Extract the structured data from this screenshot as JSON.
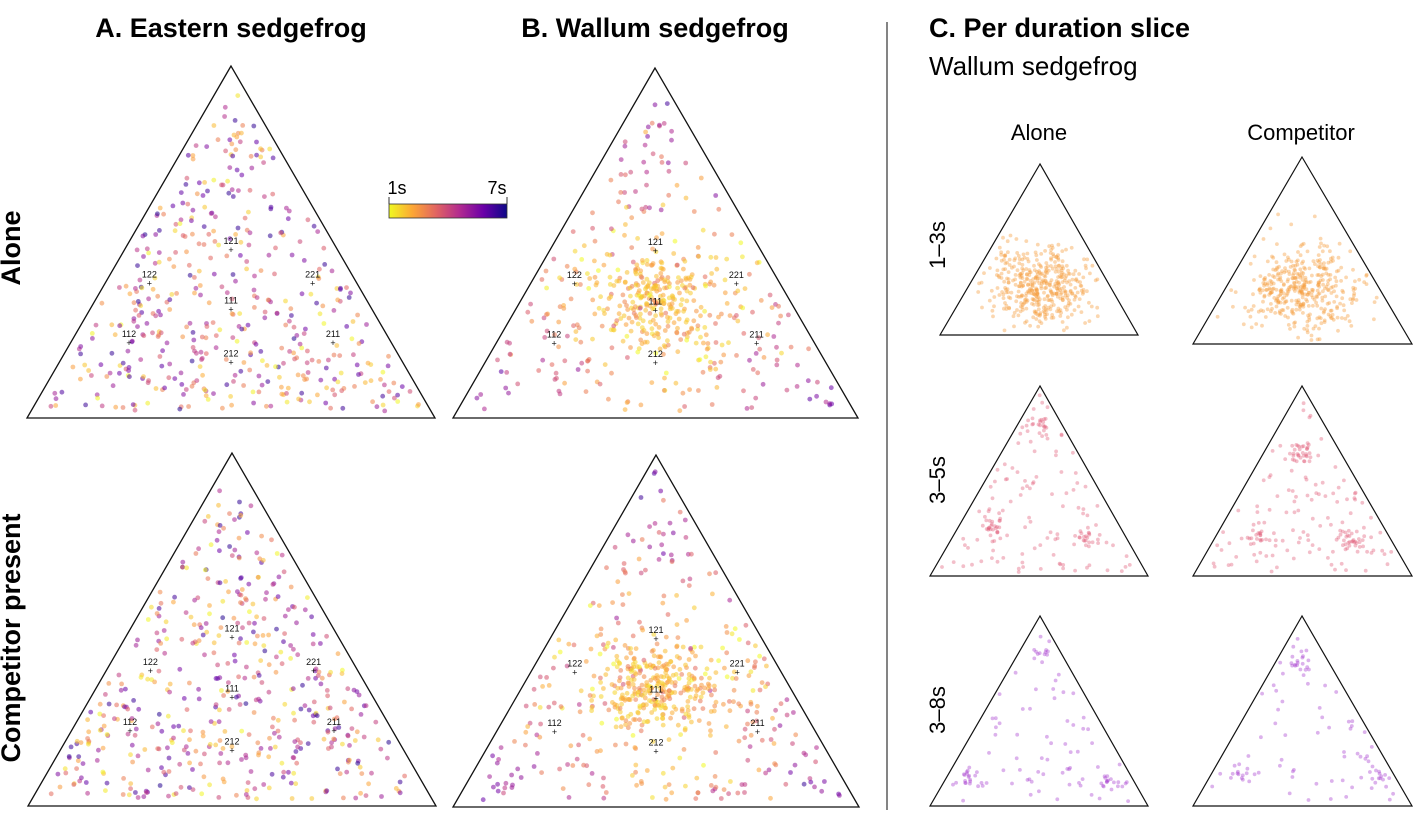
{
  "panels": {
    "a_title": "A. Eastern sedgefrog",
    "b_title": "B. Wallum sedgefrog",
    "c_title": "C. Per duration slice",
    "c_subtitle": "Wallum sedgefrog"
  },
  "rows": {
    "alone": "Alone",
    "competitor_present": "Competitor present"
  },
  "columns_c": {
    "alone": "Alone",
    "competitor": "Competitor"
  },
  "slices": [
    "1–3s",
    "3–5s",
    "3–8s"
  ],
  "colorbar": {
    "min_label": "1s",
    "max_label": "7s",
    "colormap": "plasma_reversed",
    "stops": [
      "#f0f921",
      "#fca636",
      "#e16462",
      "#b12a90",
      "#6a00a8",
      "#0d0887"
    ]
  },
  "slice_colors": [
    "#f59a3a",
    "#e0607a",
    "#a73fd0"
  ],
  "chart_data": [
    {
      "type": "scatter",
      "title": "A. Eastern sedgefrog",
      "subplots": [
        {
          "row": "Alone",
          "vertex_labels": [
            "121",
            "122",
            "221",
            "111",
            "112",
            "211",
            "212"
          ],
          "n_points": 520,
          "dist": "uniform"
        },
        {
          "row": "Competitor present",
          "vertex_labels": [
            "121",
            "122",
            "221",
            "111",
            "112",
            "211",
            "212"
          ],
          "n_points": 540,
          "dist": "uniform"
        }
      ],
      "color_scale": {
        "variable": "duration",
        "min": 1,
        "max": 7,
        "units": "s"
      }
    },
    {
      "type": "scatter",
      "title": "B. Wallum sedgefrog",
      "subplots": [
        {
          "row": "Alone",
          "vertex_labels": [
            "121",
            "122",
            "221",
            "111",
            "112",
            "211",
            "212"
          ],
          "n_points": 560,
          "dist": "centered"
        },
        {
          "row": "Competitor present",
          "vertex_labels": [
            "121",
            "122",
            "221",
            "111",
            "112",
            "211",
            "212"
          ],
          "n_points": 640,
          "dist": "centered"
        }
      ],
      "color_scale": {
        "variable": "duration",
        "min": 1,
        "max": 7,
        "units": "s"
      }
    },
    {
      "type": "scatter",
      "title": "C. Per duration slice",
      "subtitle": "Wallum sedgefrog",
      "columns": [
        "Alone",
        "Competitor"
      ],
      "slices": [
        {
          "label": "1–3s",
          "alone_points": 420,
          "competitor_points": 400
        },
        {
          "label": "3–5s",
          "alone_points": 170,
          "competitor_points": 190
        },
        {
          "label": "3–8s",
          "alone_points": 110,
          "competitor_points": 100
        }
      ]
    }
  ]
}
